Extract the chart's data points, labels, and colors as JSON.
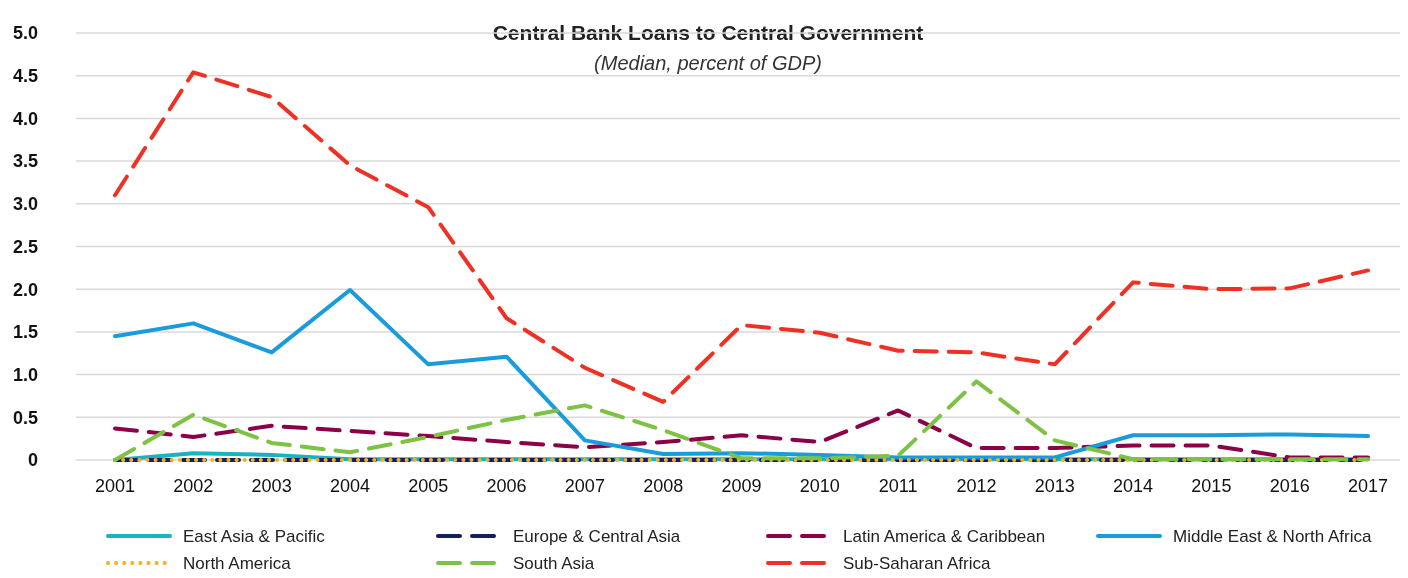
{
  "chart_data": {
    "type": "line",
    "title": "Central Bank Loans to Central Government",
    "subtitle": "(Median, percent of GDP)",
    "categories": [
      "2001",
      "2002",
      "2003",
      "2004",
      "2005",
      "2006",
      "2007",
      "2008",
      "2009",
      "2010",
      "2011",
      "2012",
      "2013",
      "2014",
      "2015",
      "2016",
      "2017"
    ],
    "ylim": [
      0,
      5
    ],
    "yticks": [
      0,
      {
        "value": 0.5,
        "label": "0.5"
      },
      {
        "value": 1,
        "label": "1.0"
      },
      {
        "value": 1.5,
        "label": "1.5"
      },
      {
        "value": 2,
        "label": "2.0"
      },
      {
        "value": 2.5,
        "label": "2.5"
      },
      {
        "value": 3,
        "label": "3.0"
      },
      {
        "value": 3.5,
        "label": "3.5"
      },
      {
        "value": 4,
        "label": "4.0"
      },
      {
        "value": 4.5,
        "label": "4.5"
      },
      {
        "value": 5,
        "label": "5.0"
      }
    ],
    "grid": "y",
    "legend": "bottom",
    "series": [
      {
        "name": "East Asia & Pacific",
        "color": "#17b3c0",
        "line_style": "solid",
        "values": [
          0,
          0.08,
          0.06,
          0.01,
          0.01,
          0.01,
          0.01,
          0.01,
          0.01,
          0.01,
          0.01,
          0.01,
          0.01,
          0.01,
          0.01,
          0.01,
          0.01
        ]
      },
      {
        "name": "Europe & Central Asia",
        "color": "#14205e",
        "line_style": "dashed",
        "values": [
          0,
          0,
          0,
          0,
          0,
          0,
          0,
          0,
          0,
          0,
          0,
          0,
          0,
          0,
          0,
          0,
          0
        ]
      },
      {
        "name": "Latin America & Caribbean",
        "color": "#8b0046",
        "line_style": "dashed",
        "values": [
          0.37,
          0.27,
          0.4,
          0.34,
          0.28,
          0.21,
          0.15,
          0.21,
          0.29,
          0.21,
          0.58,
          0.14,
          0.14,
          0.17,
          0.17,
          0.03,
          0.03
        ]
      },
      {
        "name": "Middle East & North Africa",
        "color": "#1a9bdb",
        "line_style": "solid",
        "values": [
          1.45,
          1.6,
          1.26,
          1.99,
          1.12,
          1.21,
          0.23,
          0.07,
          0.08,
          0.06,
          0.03,
          0.03,
          0.03,
          0.29,
          0.29,
          0.3,
          0.28
        ]
      },
      {
        "name": "North America",
        "color": "#f5b21b",
        "line_style": "dotted",
        "values": [
          0,
          0,
          0,
          0,
          0,
          0,
          0,
          0,
          0,
          0,
          0,
          0,
          0,
          0,
          0,
          0,
          0
        ]
      },
      {
        "name": "South Asia",
        "color": "#7dc243",
        "line_style": "dashed",
        "values": [
          0,
          0.53,
          0.2,
          0.09,
          0.27,
          0.47,
          0.64,
          0.35,
          0.02,
          0.02,
          0.05,
          0.92,
          0.23,
          0.01,
          0.01,
          0.01,
          0.01
        ]
      },
      {
        "name": "Sub-Saharan Africa",
        "color": "#ee3124",
        "line_style": "dashed",
        "values": [
          3.1,
          4.54,
          4.25,
          3.45,
          2.96,
          1.66,
          1.08,
          0.68,
          1.58,
          1.49,
          1.28,
          1.26,
          1.12,
          2.08,
          2,
          2.01,
          2.22
        ]
      }
    ]
  }
}
